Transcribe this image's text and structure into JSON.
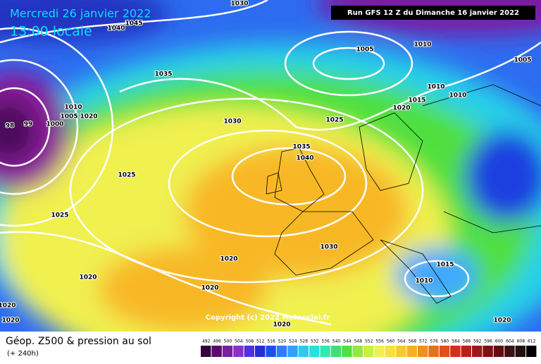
{
  "header": {
    "date": "Mercredi 26 janvier 2022",
    "time": "13:00 locale",
    "run": "Run GFS 12 Z du Dimanche 16 janvier 2022"
  },
  "isobar_labels": [
    "1030",
    "1045",
    "1040",
    "1005",
    "1010",
    "1005",
    "1035",
    "1010",
    "1010",
    "1015",
    "1020",
    "1030",
    "1025",
    "1035",
    "1040",
    "1025",
    "1025",
    "1030",
    "1020",
    "1020",
    "1015",
    "1010",
    "1020",
    "1020",
    "1020",
    "1020",
    "1020",
    "98",
    "99",
    "1000",
    "1005",
    "1010",
    "1020"
  ],
  "copyright": "Copyright (c) 2022 Meteociel.fr",
  "footer": {
    "title": "Géop. Z500 & pression au sol",
    "lead": "(+ 240h)"
  },
  "colorbar": {
    "labels": [
      492,
      496,
      500,
      504,
      508,
      512,
      516,
      520,
      524,
      528,
      532,
      536,
      540,
      544,
      548,
      552,
      556,
      560,
      564,
      568,
      572,
      576,
      580,
      584,
      588,
      592,
      596,
      600,
      604,
      608,
      612
    ]
  }
}
